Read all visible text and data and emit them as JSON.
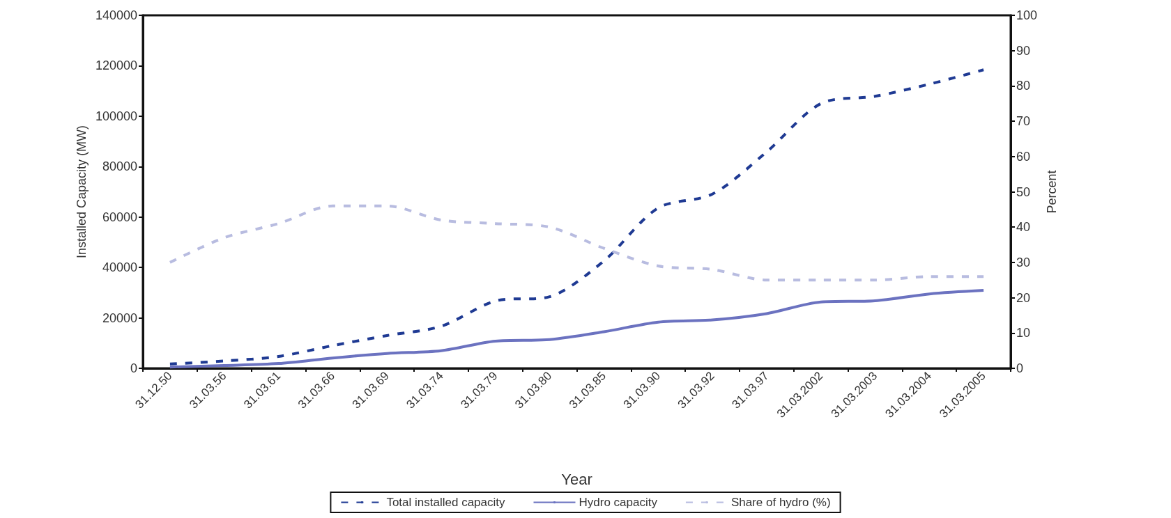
{
  "chart_data": {
    "type": "line",
    "xlabel": "Year",
    "ylabel": "Installed Capacity (MW)",
    "y2label": "Percent",
    "categories": [
      "31.12.50",
      "31.03.56",
      "31.03.61",
      "31.03.66",
      "31.03.69",
      "31.03.74",
      "31.03.79",
      "31.03.80",
      "31.03.85",
      "31.03.90",
      "31.03.92",
      "31.03.97",
      "31.03.2002",
      "31.03.2003",
      "31.03.2004",
      "31.03.2005"
    ],
    "series": [
      {
        "name": "Total installed capacity",
        "color": "#1f3a93",
        "line_style": "dashed",
        "values": [
          1700,
          2900,
          4700,
          9000,
          13000,
          16700,
          26700,
          28400,
          42600,
          63600,
          69100,
          85800,
          105000,
          107900,
          112700,
          118400
        ]
      },
      {
        "name": "Hydro capacity",
        "color": "#6b72c0",
        "line_style": "solid",
        "values": [
          500,
          1100,
          1900,
          4100,
          5900,
          7000,
          10800,
          11400,
          14500,
          18300,
          19200,
          21700,
          26300,
          26800,
          29500,
          30900
        ]
      },
      {
        "name": "Share of hydro (%)",
        "color": "#b8bce0",
        "line_style": "dashed",
        "axis": "y2",
        "values": [
          30,
          37,
          41,
          46,
          46,
          42,
          41,
          40,
          34,
          29,
          28,
          25,
          25,
          25,
          26,
          26
        ]
      }
    ],
    "ylim": [
      0,
      140000
    ],
    "yticks": [
      0,
      20000,
      40000,
      60000,
      80000,
      100000,
      120000,
      140000
    ],
    "y2lim": [
      0,
      100
    ],
    "y2ticks": [
      0,
      10,
      20,
      30,
      40,
      50,
      60,
      70,
      80,
      90,
      100
    ],
    "grid": false,
    "legend": "bottom",
    "marker": "none"
  }
}
